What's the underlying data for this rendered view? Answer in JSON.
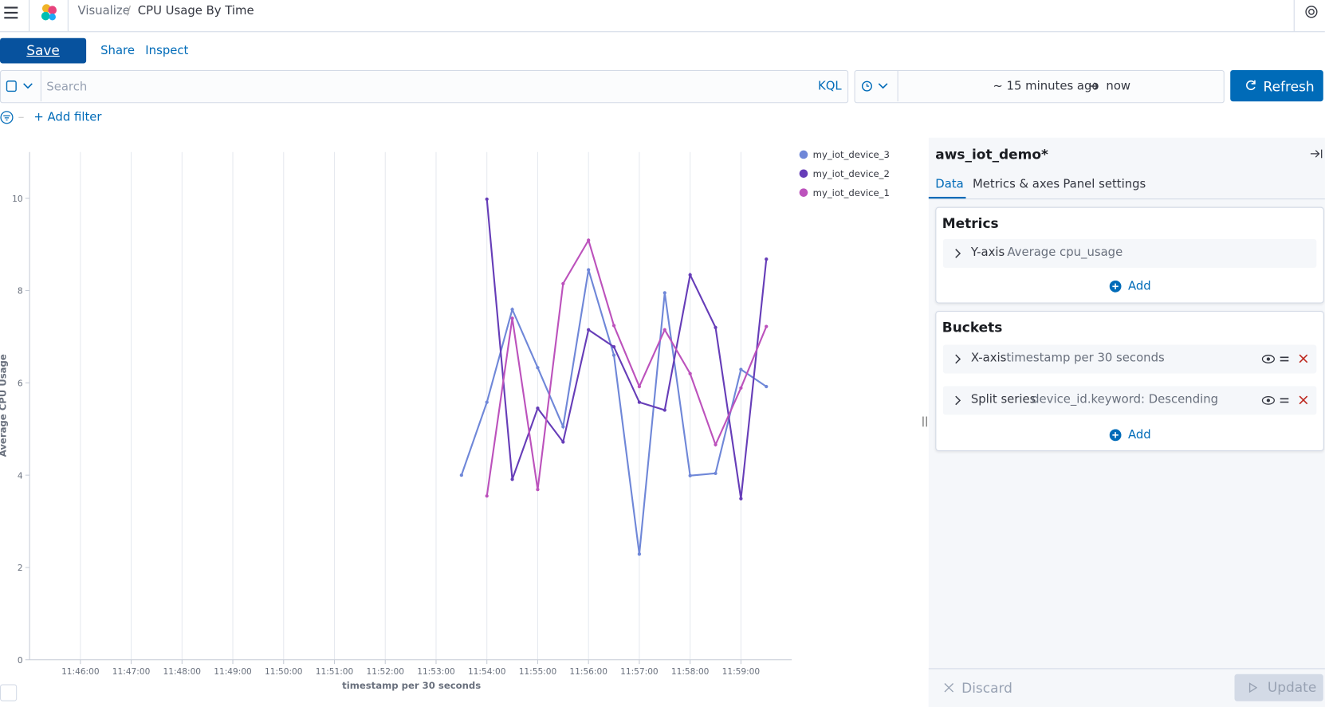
{
  "header": {
    "breadcrumb_root": "Visualize",
    "breadcrumb_current": "CPU Usage By Time"
  },
  "toolbar": {
    "save": "Save",
    "share": "Share",
    "inspect": "Inspect"
  },
  "query_bar": {
    "search_placeholder": "Search",
    "language": "KQL",
    "time_start": "~ 15 minutes ago",
    "time_end": "now",
    "refresh": "Refresh",
    "add_filter": "+ Add filter"
  },
  "chart_data": {
    "type": "line",
    "x_label": "timestamp per 30 seconds",
    "y_label": "Average CPU Usage",
    "x": [
      "11:53:30",
      "11:54:00",
      "11:54:30",
      "11:55:00",
      "11:55:30",
      "11:56:00",
      "11:56:30",
      "11:57:00",
      "11:57:30",
      "11:58:00",
      "11:58:30",
      "11:59:00",
      "11:59:30"
    ],
    "series": [
      {
        "name": "my_iot_device_3",
        "color": "#6f87d8",
        "values": [
          4.0,
          5.58,
          7.59,
          6.33,
          5.05,
          8.45,
          6.6,
          2.29,
          7.95,
          3.99,
          4.04,
          6.29,
          5.92
        ]
      },
      {
        "name": "my_iot_device_2",
        "color": "#663db8",
        "values": [
          null,
          9.98,
          3.91,
          5.45,
          4.72,
          7.15,
          6.78,
          5.58,
          5.41,
          8.34,
          7.2,
          3.49,
          8.68
        ]
      },
      {
        "name": "my_iot_device_1",
        "color": "#bc52bc",
        "values": [
          null,
          3.55,
          7.4,
          3.69,
          8.15,
          9.09,
          7.24,
          5.92,
          7.15,
          6.2,
          4.66,
          5.89,
          7.22
        ]
      }
    ],
    "xlim": [
      "11:45:00",
      "12:00:00"
    ],
    "xticks": [
      "11:46:00",
      "11:47:00",
      "11:48:00",
      "11:49:00",
      "11:50:00",
      "11:51:00",
      "11:52:00",
      "11:53:00",
      "11:54:00",
      "11:55:00",
      "11:56:00",
      "11:57:00",
      "11:58:00",
      "11:59:00"
    ],
    "ylim": [
      0,
      11
    ],
    "yticks": [
      0,
      2,
      4,
      6,
      8,
      10
    ],
    "grid": true,
    "legend": "right"
  },
  "editor": {
    "index_pattern": "aws_iot_demo*",
    "tabs": [
      "Data",
      "Metrics & axes",
      "Panel settings"
    ],
    "metrics_title": "Metrics",
    "metric_axis": "Y-axis",
    "metric_desc": "Average cpu_usage",
    "metrics_add": "Add",
    "buckets_title": "Buckets",
    "bucket_1_axis": "X-axis",
    "bucket_1_desc": "timestamp per 30 seconds",
    "bucket_2_axis": "Split series",
    "bucket_2_desc": "device_id.keyword: Descending",
    "buckets_add": "Add",
    "discard": "Discard",
    "update": "Update"
  }
}
